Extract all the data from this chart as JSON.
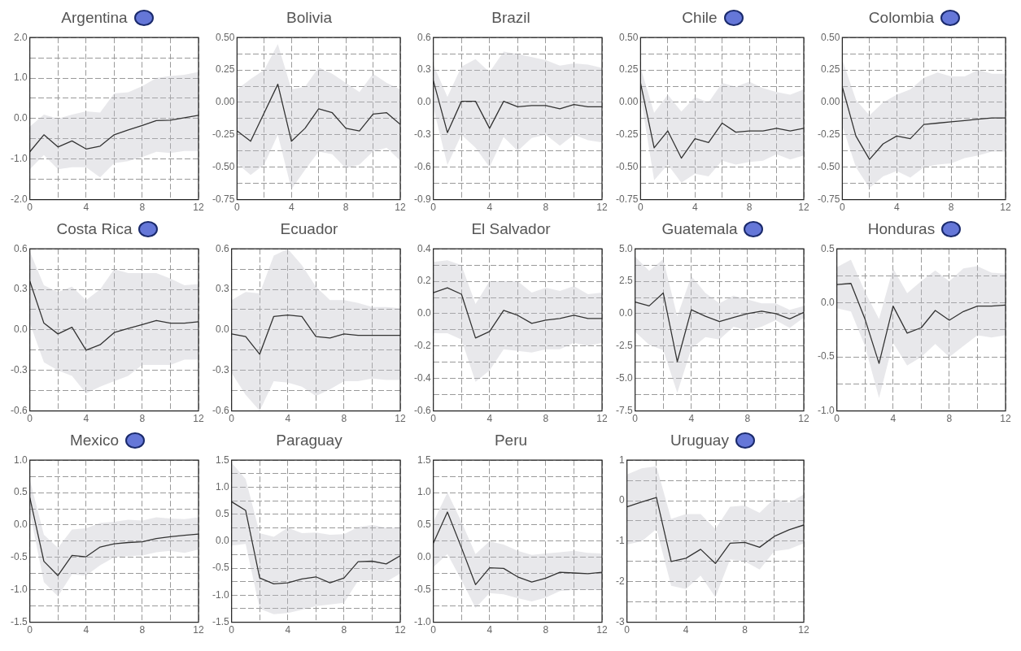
{
  "chart_data": [
    {
      "type": "line",
      "title": "Argentina",
      "x": [
        0,
        1,
        2,
        3,
        4,
        5,
        6,
        7,
        8,
        9,
        10,
        11,
        12
      ],
      "xlim": [
        0,
        12
      ],
      "xticks": [
        0,
        {
          "value": 2,
          "label": null
        },
        4,
        {
          "value": 6,
          "label": null
        },
        8,
        {
          "value": 10,
          "label": null
        },
        12
      ],
      "ylim": [
        -2,
        2
      ],
      "yticks": [
        {
          "value": -2,
          "label": "-2.0"
        },
        {
          "value": -1.5,
          "label": null
        },
        {
          "value": -1,
          "label": "-1.0"
        },
        {
          "value": -0.5,
          "label": null
        },
        {
          "value": 0,
          "label": "0.0"
        },
        {
          "value": 0.5,
          "label": null
        },
        {
          "value": 1,
          "label": "1.0"
        },
        {
          "value": 1.5,
          "label": null
        },
        {
          "value": 2,
          "label": "2.0"
        }
      ],
      "grid": true,
      "legend": false,
      "series": [
        {
          "color": "#333333",
          "values": [
            -0.82,
            -0.4,
            -0.7,
            -0.55,
            -0.75,
            -0.68,
            -0.4,
            -0.28,
            -0.17,
            -0.05,
            -0.04,
            0.02,
            0.08
          ],
          "lower": [
            -1.25,
            -0.9,
            -1.25,
            -1.2,
            -1.2,
            -1.45,
            -1.1,
            -1.05,
            -0.95,
            -0.82,
            -0.85,
            -0.8,
            -0.8
          ],
          "upper": [
            -0.2,
            0.1,
            0,
            0.1,
            0.18,
            0.15,
            0.62,
            0.65,
            0.8,
            1.0,
            1.05,
            1.08,
            1.15
          ]
        }
      ]
    },
    {
      "type": "line",
      "title": "Bolivia",
      "x": [
        0,
        1,
        2,
        3,
        4,
        5,
        6,
        7,
        8,
        9,
        10,
        11,
        12
      ],
      "xlim": [
        0,
        12
      ],
      "xticks": [
        0,
        {
          "value": 2,
          "label": null
        },
        4,
        {
          "value": 6,
          "label": null
        },
        8,
        {
          "value": 10,
          "label": null
        },
        12
      ],
      "ylim": [
        -0.75,
        0.5
      ],
      "yticks": [
        {
          "value": -0.75,
          "label": "-0.75"
        },
        {
          "value": -0.625,
          "label": null
        },
        {
          "value": -0.5,
          "label": "-0.50"
        },
        {
          "value": -0.375,
          "label": null
        },
        {
          "value": -0.25,
          "label": "-0.25"
        },
        {
          "value": -0.125,
          "label": null
        },
        {
          "value": 0,
          "label": "0.00"
        },
        {
          "value": 0.125,
          "label": null
        },
        {
          "value": 0.25,
          "label": "0.25"
        },
        {
          "value": 0.375,
          "label": null
        },
        {
          "value": 0.5,
          "label": "0.50"
        }
      ],
      "grid": true,
      "legend": false,
      "series": [
        {
          "color": "#333333",
          "values": [
            -0.22,
            -0.3,
            -0.08,
            0.14,
            -0.3,
            -0.2,
            -0.05,
            -0.08,
            -0.2,
            -0.22,
            -0.09,
            -0.08,
            -0.17
          ],
          "lower": [
            -0.47,
            -0.56,
            -0.48,
            -0.25,
            -0.67,
            -0.52,
            -0.38,
            -0.4,
            -0.51,
            -0.48,
            -0.38,
            -0.35,
            -0.45
          ],
          "upper": [
            0.1,
            0.18,
            0.25,
            0.45,
            0.1,
            0.12,
            0.27,
            0.22,
            0.15,
            0.08,
            0.22,
            0.15,
            0.1
          ]
        }
      ]
    },
    {
      "type": "line",
      "title": "Brazil",
      "x": [
        0,
        1,
        2,
        3,
        4,
        5,
        6,
        7,
        8,
        9,
        10,
        11,
        12
      ],
      "xlim": [
        0,
        12
      ],
      "xticks": [
        0,
        {
          "value": 2,
          "label": null
        },
        4,
        {
          "value": 6,
          "label": null
        },
        8,
        {
          "value": 10,
          "label": null
        },
        12
      ],
      "ylim": [
        -0.9,
        0.6
      ],
      "yticks": [
        {
          "value": -0.9,
          "label": "-0.9"
        },
        {
          "value": -0.75,
          "label": null
        },
        {
          "value": -0.6,
          "label": "-0.6"
        },
        {
          "value": -0.45,
          "label": null
        },
        {
          "value": -0.3,
          "label": "-0.3"
        },
        {
          "value": -0.15,
          "label": null
        },
        {
          "value": 0,
          "label": "0.0"
        },
        {
          "value": 0.15,
          "label": null
        },
        {
          "value": 0.3,
          "label": "0.3"
        },
        {
          "value": 0.45,
          "label": null
        },
        {
          "value": 0.6,
          "label": "0.6"
        }
      ],
      "grid": true,
      "legend": false,
      "series": [
        {
          "color": "#333333",
          "values": [
            0.2,
            -0.28,
            0.01,
            0.01,
            -0.24,
            0.01,
            -0.04,
            -0.03,
            -0.03,
            -0.06,
            -0.02,
            -0.04,
            -0.04
          ],
          "lower": [
            -0.05,
            -0.58,
            -0.3,
            -0.42,
            -0.6,
            -0.32,
            -0.45,
            -0.33,
            -0.3,
            -0.4,
            -0.3,
            -0.35,
            -0.37
          ],
          "upper": [
            0.35,
            0.05,
            0.33,
            0.4,
            0.28,
            0.47,
            0.45,
            0.42,
            0.39,
            0.34,
            0.36,
            0.35,
            0.32
          ]
        }
      ]
    },
    {
      "type": "line",
      "title": "Chile",
      "x": [
        0,
        1,
        2,
        3,
        4,
        5,
        6,
        7,
        8,
        9,
        10,
        11,
        12
      ],
      "xlim": [
        0,
        12
      ],
      "xticks": [
        0,
        {
          "value": 2,
          "label": null
        },
        4,
        {
          "value": 6,
          "label": null
        },
        8,
        {
          "value": 10,
          "label": null
        },
        12
      ],
      "ylim": [
        -0.75,
        0.5
      ],
      "yticks": [
        {
          "value": -0.75,
          "label": "-0.75"
        },
        {
          "value": -0.625,
          "label": null
        },
        {
          "value": -0.5,
          "label": "-0.50"
        },
        {
          "value": -0.375,
          "label": null
        },
        {
          "value": -0.25,
          "label": "-0.25"
        },
        {
          "value": -0.125,
          "label": null
        },
        {
          "value": 0,
          "label": "0.00"
        },
        {
          "value": 0.125,
          "label": null
        },
        {
          "value": 0.25,
          "label": "0.25"
        },
        {
          "value": 0.375,
          "label": null
        },
        {
          "value": 0.5,
          "label": "0.50"
        }
      ],
      "grid": true,
      "legend": false,
      "series": [
        {
          "color": "#333333",
          "values": [
            0.15,
            -0.35,
            -0.22,
            -0.43,
            -0.28,
            -0.31,
            -0.16,
            -0.23,
            -0.22,
            -0.22,
            -0.2,
            -0.22,
            -0.2
          ],
          "lower": [
            0.05,
            -0.6,
            -0.48,
            -0.62,
            -0.55,
            -0.57,
            -0.45,
            -0.48,
            -0.46,
            -0.45,
            -0.4,
            -0.44,
            -0.41
          ],
          "upper": [
            0.27,
            -0.08,
            0.06,
            -0.07,
            0.04,
            0.0,
            0.15,
            0.12,
            0.16,
            0.11,
            0.08,
            0.06,
            0.1
          ]
        }
      ]
    },
    {
      "type": "line",
      "title": "Colombia",
      "x": [
        0,
        1,
        2,
        3,
        4,
        5,
        6,
        7,
        8,
        9,
        10,
        11,
        12
      ],
      "xlim": [
        0,
        12
      ],
      "xticks": [
        0,
        {
          "value": 2,
          "label": null
        },
        4,
        {
          "value": 6,
          "label": null
        },
        8,
        {
          "value": 10,
          "label": null
        },
        12
      ],
      "ylim": [
        -0.75,
        0.5
      ],
      "yticks": [
        {
          "value": -0.75,
          "label": "-0.75"
        },
        {
          "value": -0.625,
          "label": null
        },
        {
          "value": -0.5,
          "label": "-0.50"
        },
        {
          "value": -0.375,
          "label": null
        },
        {
          "value": -0.25,
          "label": "-0.25"
        },
        {
          "value": -0.125,
          "label": null
        },
        {
          "value": 0,
          "label": "0.00"
        },
        {
          "value": 0.125,
          "label": null
        },
        {
          "value": 0.25,
          "label": "0.25"
        },
        {
          "value": 0.375,
          "label": null
        },
        {
          "value": 0.5,
          "label": "0.50"
        }
      ],
      "grid": true,
      "legend": false,
      "series": [
        {
          "color": "#333333",
          "values": [
            0.12,
            -0.26,
            -0.44,
            -0.32,
            -0.26,
            -0.28,
            -0.17,
            -0.16,
            -0.15,
            -0.14,
            -0.13,
            -0.12,
            -0.12
          ],
          "lower": [
            -0.18,
            -0.5,
            -0.66,
            -0.57,
            -0.53,
            -0.58,
            -0.5,
            -0.48,
            -0.47,
            -0.43,
            -0.41,
            -0.38,
            -0.38
          ],
          "upper": [
            0.33,
            0.02,
            -0.1,
            0,
            0.06,
            0.1,
            0.19,
            0.23,
            0.2,
            0.2,
            0.25,
            0.22,
            0.22
          ]
        }
      ]
    },
    {
      "type": "line",
      "title": "Costa Rica",
      "x": [
        0,
        1,
        2,
        3,
        4,
        5,
        6,
        7,
        8,
        9,
        10,
        11,
        12
      ],
      "xlim": [
        0,
        12
      ],
      "xticks": [
        0,
        {
          "value": 2,
          "label": null
        },
        4,
        {
          "value": 6,
          "label": null
        },
        8,
        {
          "value": 10,
          "label": null
        },
        12
      ],
      "ylim": [
        -0.6,
        0.6
      ],
      "yticks": [
        {
          "value": -0.6,
          "label": "-0.6"
        },
        {
          "value": -0.45,
          "label": null
        },
        {
          "value": -0.3,
          "label": "-0.3"
        },
        {
          "value": -0.15,
          "label": null
        },
        {
          "value": 0,
          "label": "0.0"
        },
        {
          "value": 0.15,
          "label": null
        },
        {
          "value": 0.3,
          "label": "0.3"
        },
        {
          "value": 0.45,
          "label": null
        },
        {
          "value": 0.6,
          "label": "0.6"
        }
      ],
      "grid": true,
      "legend": false,
      "series": [
        {
          "color": "#333333",
          "values": [
            0.36,
            0.05,
            -0.03,
            0.02,
            -0.15,
            -0.11,
            -0.02,
            0.01,
            0.04,
            0.07,
            0.05,
            0.05,
            0.06
          ],
          "lower": [
            0.05,
            -0.24,
            -0.3,
            -0.34,
            -0.47,
            -0.42,
            -0.38,
            -0.34,
            -0.26,
            -0.26,
            -0.26,
            -0.22,
            -0.22
          ],
          "upper": [
            0.58,
            0.33,
            0.28,
            0.32,
            0.22,
            0.3,
            0.45,
            0.42,
            0.42,
            0.42,
            0.38,
            0.33,
            0.34
          ]
        }
      ]
    },
    {
      "type": "line",
      "title": "Ecuador",
      "x": [
        0,
        1,
        2,
        3,
        4,
        5,
        6,
        7,
        8,
        9,
        10,
        11,
        12
      ],
      "xlim": [
        0,
        12
      ],
      "xticks": [
        0,
        {
          "value": 2,
          "label": null
        },
        4,
        {
          "value": 6,
          "label": null
        },
        8,
        {
          "value": 10,
          "label": null
        },
        12
      ],
      "ylim": [
        -0.6,
        0.6
      ],
      "yticks": [
        {
          "value": -0.6,
          "label": "-0.6"
        },
        {
          "value": -0.45,
          "label": null
        },
        {
          "value": -0.3,
          "label": "-0.3"
        },
        {
          "value": -0.15,
          "label": null
        },
        {
          "value": 0,
          "label": "0.0"
        },
        {
          "value": 0.15,
          "label": null
        },
        {
          "value": 0.3,
          "label": "0.3"
        },
        {
          "value": 0.45,
          "label": null
        },
        {
          "value": 0.6,
          "label": "0.6"
        }
      ],
      "grid": true,
      "legend": false,
      "series": [
        {
          "color": "#333333",
          "values": [
            -0.03,
            -0.05,
            -0.18,
            0.1,
            0.11,
            0.1,
            -0.05,
            -0.06,
            -0.03,
            -0.04,
            -0.04,
            -0.04,
            -0.04
          ],
          "lower": [
            -0.32,
            -0.48,
            -0.6,
            -0.38,
            -0.39,
            -0.42,
            -0.49,
            -0.44,
            -0.38,
            -0.38,
            -0.36,
            -0.37,
            -0.37
          ],
          "upper": [
            0.22,
            0.28,
            0.27,
            0.55,
            0.6,
            0.48,
            0.32,
            0.22,
            0.22,
            0.2,
            0.17,
            0.17,
            0.16
          ]
        }
      ]
    },
    {
      "type": "line",
      "title": "El Salvador",
      "x": [
        0,
        1,
        2,
        3,
        4,
        5,
        6,
        7,
        8,
        9,
        10,
        11,
        12
      ],
      "xlim": [
        0,
        12
      ],
      "xticks": [
        0,
        {
          "value": 2,
          "label": null
        },
        4,
        {
          "value": 6,
          "label": null
        },
        8,
        {
          "value": 10,
          "label": null
        },
        12
      ],
      "ylim": [
        -0.6,
        0.4
      ],
      "yticks": [
        {
          "value": -0.6,
          "label": "-0.6"
        },
        {
          "value": -0.5,
          "label": null
        },
        {
          "value": -0.4,
          "label": "-0.4"
        },
        {
          "value": -0.3,
          "label": null
        },
        {
          "value": -0.2,
          "label": "-0.2"
        },
        {
          "value": -0.1,
          "label": null
        },
        {
          "value": 0,
          "label": "0.0"
        },
        {
          "value": 0.1,
          "label": null
        },
        {
          "value": 0.2,
          "label": "0.2"
        },
        {
          "value": 0.3,
          "label": null
        },
        {
          "value": 0.4,
          "label": "0.4"
        }
      ],
      "grid": true,
      "legend": false,
      "series": [
        {
          "color": "#333333",
          "values": [
            0.13,
            0.16,
            0.12,
            -0.15,
            -0.11,
            0.02,
            -0.01,
            -0.06,
            -0.04,
            -0.03,
            -0.01,
            -0.03,
            -0.03
          ],
          "lower": [
            -0.12,
            -0.12,
            -0.16,
            -0.42,
            -0.35,
            -0.22,
            -0.23,
            -0.24,
            -0.22,
            -0.22,
            -0.18,
            -0.2,
            -0.18
          ],
          "upper": [
            0.32,
            0.33,
            0.3,
            0.06,
            0.2,
            0.2,
            0.2,
            0.13,
            0.16,
            0.14,
            0.17,
            0.12,
            0.13
          ]
        }
      ]
    },
    {
      "type": "line",
      "title": "Guatemala",
      "x": [
        0,
        1,
        2,
        3,
        4,
        5,
        6,
        7,
        8,
        9,
        10,
        11,
        12
      ],
      "xlim": [
        0,
        12
      ],
      "xticks": [
        0,
        {
          "value": 2,
          "label": null
        },
        4,
        {
          "value": 6,
          "label": null
        },
        8,
        {
          "value": 10,
          "label": null
        },
        12
      ],
      "ylim": [
        -7.5,
        5
      ],
      "yticks": [
        {
          "value": -7.5,
          "label": "-7.5"
        },
        {
          "value": -6.25,
          "label": null
        },
        {
          "value": -5,
          "label": "-5.0"
        },
        {
          "value": -3.75,
          "label": null
        },
        {
          "value": -2.5,
          "label": "-2.5"
        },
        {
          "value": -1.25,
          "label": null
        },
        {
          "value": 0,
          "label": "0.0"
        },
        {
          "value": 1.25,
          "label": null
        },
        {
          "value": 2.5,
          "label": "2.5"
        },
        {
          "value": 3.75,
          "label": null
        },
        {
          "value": 5,
          "label": "5.0"
        }
      ],
      "grid": true,
      "legend": false,
      "series": [
        {
          "color": "#333333",
          "values": [
            0.9,
            0.6,
            1.6,
            -3.7,
            0.3,
            -0.2,
            -0.6,
            -0.3,
            0,
            0.2,
            0,
            -0.4,
            0.1
          ],
          "lower": [
            -1.4,
            -2.4,
            -2.8,
            -6.1,
            -2.7,
            -1.8,
            -2,
            -1,
            -1.3,
            -1,
            -0.5,
            -1.1,
            -0.3
          ],
          "upper": [
            4.4,
            3.3,
            4.2,
            -0.2,
            2.9,
            1.6,
            0.8,
            1.4,
            1.1,
            0.8,
            0.8,
            0.3,
            0.6
          ]
        }
      ]
    },
    {
      "type": "line",
      "title": "Honduras",
      "x": [
        0,
        1,
        2,
        3,
        4,
        5,
        6,
        7,
        8,
        9,
        10,
        11,
        12
      ],
      "xlim": [
        0,
        12
      ],
      "xticks": [
        0,
        {
          "value": 2,
          "label": null
        },
        4,
        {
          "value": 6,
          "label": null
        },
        8,
        {
          "value": 10,
          "label": null
        },
        12
      ],
      "ylim": [
        -1,
        0.5
      ],
      "yticks": [
        {
          "value": -1,
          "label": "-1.0"
        },
        {
          "value": -0.75,
          "label": null
        },
        {
          "value": -0.5,
          "label": "-0.5"
        },
        {
          "value": -0.25,
          "label": null
        },
        {
          "value": 0,
          "label": "0.0"
        },
        {
          "value": 0.25,
          "label": null
        },
        {
          "value": 0.5,
          "label": "0.5"
        }
      ],
      "grid": true,
      "legend": false,
      "series": [
        {
          "color": "#333333",
          "values": [
            0.17,
            0.18,
            -0.15,
            -0.56,
            -0.03,
            -0.28,
            -0.23,
            -0.07,
            -0.16,
            -0.08,
            -0.03,
            -0.03,
            -0.02
          ],
          "lower": [
            -0.05,
            -0.08,
            -0.4,
            -0.88,
            -0.37,
            -0.58,
            -0.5,
            -0.38,
            -0.5,
            -0.4,
            -0.3,
            -0.32,
            -0.3
          ],
          "upper": [
            0.33,
            0.4,
            0.1,
            -0.15,
            0.32,
            0.09,
            0.2,
            0.3,
            0.2,
            0.32,
            0.34,
            0.28,
            0.27
          ]
        }
      ]
    },
    {
      "type": "line",
      "title": "Mexico",
      "x": [
        0,
        1,
        2,
        3,
        4,
        5,
        6,
        7,
        8,
        9,
        10,
        11,
        12
      ],
      "xlim": [
        0,
        12
      ],
      "xticks": [
        0,
        {
          "value": 2,
          "label": null
        },
        4,
        {
          "value": 6,
          "label": null
        },
        8,
        {
          "value": 10,
          "label": null
        },
        12
      ],
      "ylim": [
        -1.5,
        1
      ],
      "yticks": [
        {
          "value": -1.5,
          "label": "-1.5"
        },
        {
          "value": -1.25,
          "label": null
        },
        {
          "value": -1,
          "label": "-1.0"
        },
        {
          "value": -0.75,
          "label": null
        },
        {
          "value": -0.5,
          "label": "-0.5"
        },
        {
          "value": -0.25,
          "label": null
        },
        {
          "value": 0,
          "label": "0.0"
        },
        {
          "value": 0.25,
          "label": null
        },
        {
          "value": 0.5,
          "label": "0.5"
        },
        {
          "value": 0.75,
          "label": null
        },
        {
          "value": 1,
          "label": "1.0"
        }
      ],
      "grid": true,
      "legend": false,
      "series": [
        {
          "color": "#333333",
          "values": [
            0.42,
            -0.56,
            -0.78,
            -0.47,
            -0.49,
            -0.34,
            -0.29,
            -0.27,
            -0.26,
            -0.21,
            -0.18,
            -0.16,
            -0.14
          ],
          "lower": [
            0.2,
            -0.88,
            -1.1,
            -0.76,
            -0.78,
            -0.62,
            -0.5,
            -0.48,
            -0.47,
            -0.42,
            -0.4,
            -0.43,
            -0.38
          ],
          "upper": [
            0.7,
            -0.15,
            -0.35,
            -0.07,
            -0.05,
            0.03,
            0.05,
            0.08,
            0.07,
            0.12,
            0.1,
            0.09,
            0.12
          ]
        }
      ]
    },
    {
      "type": "line",
      "title": "Paraguay",
      "x": [
        0,
        1,
        2,
        3,
        4,
        5,
        6,
        7,
        8,
        9,
        10,
        11,
        12
      ],
      "xlim": [
        0,
        12
      ],
      "xticks": [
        0,
        {
          "value": 2,
          "label": null
        },
        4,
        {
          "value": 6,
          "label": null
        },
        8,
        {
          "value": 10,
          "label": null
        },
        12
      ],
      "ylim": [
        -1.5,
        1.5
      ],
      "yticks": [
        {
          "value": -1.5,
          "label": "-1.5"
        },
        {
          "value": -1.25,
          "label": null
        },
        {
          "value": -1,
          "label": "-1.0"
        },
        {
          "value": -0.75,
          "label": null
        },
        {
          "value": -0.5,
          "label": "-0.5"
        },
        {
          "value": -0.25,
          "label": null
        },
        {
          "value": 0,
          "label": "0.0"
        },
        {
          "value": 0.25,
          "label": null
        },
        {
          "value": 0.5,
          "label": "0.5"
        },
        {
          "value": 0.75,
          "label": null
        },
        {
          "value": 1,
          "label": "1.0"
        },
        {
          "value": 1.25,
          "label": null
        },
        {
          "value": 1.5,
          "label": "1.5"
        }
      ],
      "grid": true,
      "legend": false,
      "series": [
        {
          "color": "#333333",
          "values": [
            0.73,
            0.57,
            -0.68,
            -0.79,
            -0.77,
            -0.7,
            -0.66,
            -0.77,
            -0.68,
            -0.38,
            -0.37,
            -0.42,
            -0.27
          ],
          "lower": [
            -0.08,
            -0.05,
            -1.25,
            -1.35,
            -1.33,
            -1.27,
            -1.2,
            -1.17,
            -1.14,
            -0.73,
            -0.72,
            -0.75,
            -0.6
          ],
          "upper": [
            1.45,
            1.15,
            0.15,
            0.08,
            0.25,
            0.15,
            0.16,
            0.12,
            0.13,
            0.26,
            0.3,
            0.25,
            0.25
          ]
        }
      ]
    },
    {
      "type": "line",
      "title": "Peru",
      "x": [
        0,
        1,
        2,
        3,
        4,
        5,
        6,
        7,
        8,
        9,
        10,
        11,
        12
      ],
      "xlim": [
        0,
        12
      ],
      "xticks": [
        0,
        {
          "value": 2,
          "label": null
        },
        4,
        {
          "value": 6,
          "label": null
        },
        8,
        {
          "value": 10,
          "label": null
        },
        12
      ],
      "ylim": [
        -1,
        1.5
      ],
      "yticks": [
        {
          "value": -1,
          "label": "-1.0"
        },
        {
          "value": -0.75,
          "label": null
        },
        {
          "value": -0.5,
          "label": "-0.5"
        },
        {
          "value": -0.25,
          "label": null
        },
        {
          "value": 0,
          "label": "0.0"
        },
        {
          "value": 0.25,
          "label": null
        },
        {
          "value": 0.5,
          "label": "0.5"
        },
        {
          "value": 0.75,
          "label": null
        },
        {
          "value": 1,
          "label": "1.0"
        },
        {
          "value": 1.25,
          "label": null
        },
        {
          "value": 1.5,
          "label": "1.5"
        }
      ],
      "grid": true,
      "legend": false,
      "series": [
        {
          "color": "#333333",
          "values": [
            0.22,
            0.7,
            0.15,
            -0.42,
            -0.16,
            -0.17,
            -0.3,
            -0.38,
            -0.32,
            -0.23,
            -0.24,
            -0.25,
            -0.23
          ],
          "lower": [
            -0.15,
            0.05,
            -0.35,
            -0.78,
            -0.55,
            -0.57,
            -0.63,
            -0.68,
            -0.62,
            -0.52,
            -0.5,
            -0.5,
            -0.5
          ],
          "upper": [
            0.55,
            1.0,
            0.55,
            0.05,
            0.25,
            0.2,
            0.1,
            0.04,
            0.06,
            0.08,
            0.1,
            0.07,
            0.06
          ]
        }
      ]
    },
    {
      "type": "line",
      "title": "Uruguay",
      "x": [
        0,
        1,
        2,
        3,
        4,
        5,
        6,
        7,
        8,
        9,
        10,
        11,
        12
      ],
      "xlim": [
        0,
        12
      ],
      "xticks": [
        0,
        {
          "value": 2,
          "label": null
        },
        4,
        {
          "value": 6,
          "label": null
        },
        8,
        {
          "value": 10,
          "label": null
        },
        12
      ],
      "ylim": [
        -3,
        1
      ],
      "yticks": [
        -3,
        {
          "value": -2.5,
          "label": null
        },
        -2,
        {
          "value": -1.5,
          "label": null
        },
        -1,
        {
          "value": -0.5,
          "label": null
        },
        0,
        {
          "value": 0.5,
          "label": null
        },
        1
      ],
      "grid": true,
      "legend": false,
      "series": [
        {
          "color": "#333333",
          "values": [
            -0.15,
            -0.03,
            0.08,
            -1.5,
            -1.42,
            -1.2,
            -1.55,
            -1.05,
            -1.03,
            -1.15,
            -0.88,
            -0.72,
            -0.6
          ],
          "lower": [
            -1.08,
            -1.0,
            -0.7,
            -2.1,
            -2.18,
            -1.85,
            -2.38,
            -1.45,
            -1.5,
            -1.7,
            -1.25,
            -1.2,
            -1.05
          ],
          "upper": [
            0.65,
            0.8,
            0.85,
            -0.45,
            -0.33,
            -0.33,
            -0.7,
            -0.15,
            -0.12,
            -0.3,
            0.05,
            -0.05,
            0.15
          ]
        }
      ]
    }
  ]
}
